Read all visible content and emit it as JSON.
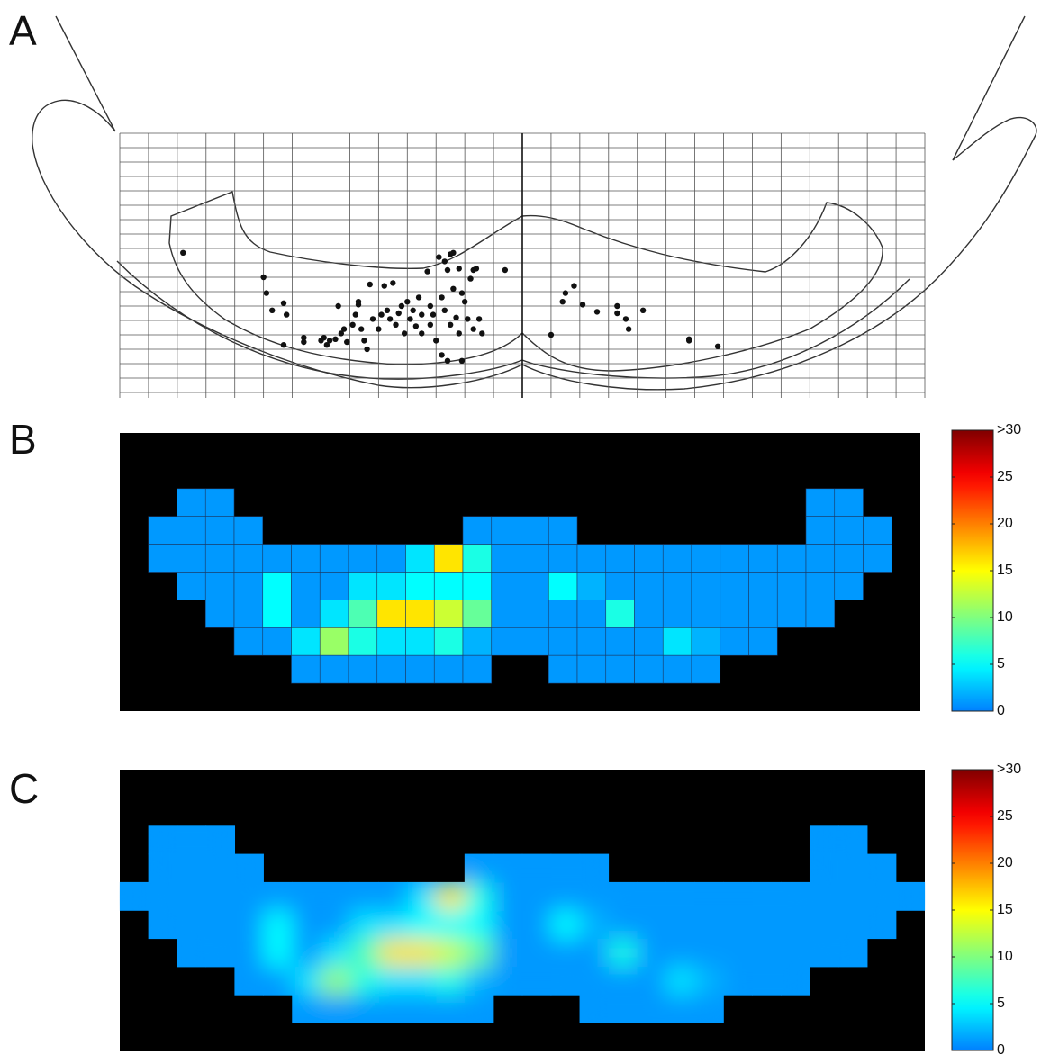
{
  "chart_data": [
    {
      "type": "scatter",
      "panel_label": "A",
      "color": "#111111",
      "xlim": [
        0,
        28
      ],
      "ylim": [
        18,
        0
      ],
      "grid": true,
      "x": [
        2.2,
        5.0,
        5.1,
        5.3,
        5.7,
        5.8,
        5.7,
        6.4,
        6.4,
        7.0,
        7.1,
        7.2,
        7.3,
        7.5,
        7.6,
        7.7,
        7.8,
        7.9,
        8.1,
        8.2,
        8.3,
        8.3,
        8.4,
        8.5,
        8.6,
        8.7,
        8.8,
        9.0,
        9.1,
        9.2,
        9.3,
        9.4,
        9.5,
        9.6,
        9.7,
        9.8,
        9.9,
        10.0,
        10.1,
        10.2,
        10.3,
        10.4,
        10.5,
        10.5,
        10.7,
        10.8,
        10.8,
        10.9,
        11.0,
        11.1,
        11.2,
        11.2,
        11.3,
        11.3,
        11.4,
        11.5,
        11.5,
        11.6,
        11.6,
        11.7,
        11.8,
        11.8,
        11.9,
        11.9,
        12.0,
        12.1,
        12.2,
        12.3,
        12.3,
        12.5,
        12.6,
        12.4,
        11.4,
        13.4,
        15.0,
        15.4,
        15.5,
        15.8,
        16.1,
        16.6,
        17.3,
        17.3,
        17.6,
        17.7,
        18.2,
        19.8,
        19.8,
        20.8
      ],
      "y": [
        8.3,
        10.0,
        11.1,
        12.3,
        11.8,
        12.6,
        14.7,
        14.2,
        14.5,
        14.4,
        14.2,
        14.7,
        14.4,
        14.3,
        12.0,
        13.9,
        13.6,
        14.5,
        13.3,
        12.6,
        11.9,
        11.7,
        13.6,
        14.4,
        15.0,
        10.5,
        12.9,
        13.6,
        12.6,
        10.6,
        12.3,
        12.9,
        10.4,
        13.3,
        12.5,
        12.0,
        13.9,
        11.7,
        12.9,
        12.3,
        13.4,
        11.4,
        12.6,
        13.9,
        9.6,
        12.0,
        13.3,
        12.6,
        14.4,
        8.6,
        15.4,
        11.4,
        12.3,
        8.9,
        9.5,
        8.4,
        13.3,
        8.3,
        10.8,
        12.8,
        13.9,
        9.4,
        15.8,
        11.1,
        11.7,
        12.9,
        10.1,
        9.5,
        13.6,
        12.9,
        13.9,
        9.4,
        15.8,
        9.5,
        14.0,
        11.7,
        11.1,
        10.6,
        11.9,
        12.4,
        12.0,
        12.5,
        12.9,
        13.6,
        12.3,
        14.4,
        14.3,
        14.8
      ]
    },
    {
      "type": "heatmap",
      "panel_label": "B",
      "colormap": "jet",
      "smooth": false,
      "values": [
        [
          null,
          null,
          null,
          null,
          null,
          null,
          null,
          null,
          null,
          null,
          null,
          null,
          null,
          null,
          null,
          null,
          null,
          null,
          null,
          null,
          null,
          null,
          null,
          null,
          null,
          null,
          null,
          null
        ],
        [
          null,
          null,
          null,
          null,
          null,
          null,
          null,
          null,
          null,
          null,
          null,
          null,
          null,
          null,
          null,
          null,
          null,
          null,
          null,
          null,
          null,
          null,
          null,
          null,
          null,
          null,
          null,
          null
        ],
        [
          null,
          null,
          1,
          1,
          null,
          null,
          null,
          null,
          null,
          null,
          null,
          null,
          null,
          null,
          null,
          null,
          null,
          null,
          null,
          null,
          null,
          null,
          null,
          null,
          1,
          1,
          null,
          null
        ],
        [
          null,
          1,
          1,
          1,
          1,
          null,
          null,
          null,
          null,
          null,
          null,
          null,
          1,
          1,
          1,
          1,
          null,
          null,
          null,
          null,
          null,
          null,
          null,
          null,
          1,
          1,
          1,
          null
        ],
        [
          null,
          1,
          1,
          1,
          1,
          1,
          1,
          1,
          1,
          1,
          4,
          16,
          6,
          1,
          1,
          1,
          1,
          1,
          1,
          1,
          1,
          1,
          1,
          1,
          1,
          1,
          1,
          null
        ],
        [
          null,
          null,
          1,
          1,
          1,
          5,
          1,
          1,
          4,
          4,
          5,
          5,
          5,
          1,
          1,
          5,
          2,
          1,
          1,
          1,
          1,
          1,
          1,
          1,
          1,
          1,
          null,
          null
        ],
        [
          null,
          null,
          null,
          1,
          1,
          5,
          1,
          4,
          8,
          16,
          16,
          13,
          9,
          1,
          1,
          1,
          1,
          6,
          1,
          1,
          1,
          1,
          1,
          1,
          1,
          null,
          null,
          null
        ],
        [
          null,
          null,
          null,
          null,
          1,
          1,
          4,
          11,
          6,
          4,
          4,
          6,
          2,
          1,
          1,
          1,
          1,
          1,
          1,
          4,
          2,
          1,
          1,
          null,
          null,
          null,
          null,
          null
        ],
        [
          null,
          null,
          null,
          null,
          null,
          null,
          1,
          1,
          1,
          1,
          1,
          1,
          1,
          null,
          null,
          1,
          1,
          1,
          1,
          1,
          1,
          null,
          null,
          null,
          null,
          null,
          null,
          null
        ],
        [
          null,
          null,
          null,
          null,
          null,
          null,
          null,
          null,
          null,
          null,
          null,
          null,
          null,
          null,
          null,
          null,
          null,
          null,
          null,
          null,
          null,
          null,
          null,
          null,
          null,
          null,
          null,
          null
        ]
      ],
      "colorbar": {
        "ylim": [
          0,
          30
        ],
        "yticks": [
          0,
          5,
          10,
          15,
          20,
          25,
          {
            "value": 30,
            "label": ">30"
          }
        ]
      }
    },
    {
      "type": "heatmap",
      "panel_label": "C",
      "colormap": "jet",
      "smooth": true,
      "values": [
        [
          null,
          null,
          null,
          null,
          null,
          null,
          null,
          null,
          null,
          null,
          null,
          null,
          null,
          null,
          null,
          null,
          null,
          null,
          null,
          null,
          null,
          null,
          null,
          null,
          null,
          null,
          null,
          null
        ],
        [
          null,
          null,
          null,
          null,
          null,
          null,
          null,
          null,
          null,
          null,
          null,
          null,
          null,
          null,
          null,
          null,
          null,
          null,
          null,
          null,
          null,
          null,
          null,
          null,
          null,
          null,
          null,
          null
        ],
        [
          null,
          1,
          1,
          1,
          null,
          null,
          null,
          null,
          null,
          null,
          null,
          null,
          null,
          null,
          null,
          null,
          null,
          null,
          null,
          null,
          null,
          null,
          null,
          null,
          1,
          1,
          null,
          null
        ],
        [
          null,
          1,
          1,
          1,
          1,
          null,
          null,
          null,
          null,
          null,
          null,
          null,
          1,
          1,
          1,
          1,
          1,
          null,
          null,
          null,
          null,
          null,
          null,
          null,
          1,
          1,
          1,
          null
        ],
        [
          1,
          1,
          1,
          1,
          1,
          1,
          1,
          1,
          1,
          1,
          4,
          16,
          6,
          1,
          1,
          1,
          1,
          1,
          1,
          1,
          1,
          1,
          1,
          1,
          1,
          1,
          1,
          1
        ],
        [
          null,
          1,
          1,
          1,
          1,
          5,
          1,
          1,
          4,
          4,
          5,
          5,
          5,
          1,
          1,
          5,
          2,
          1,
          1,
          1,
          1,
          1,
          1,
          1,
          1,
          1,
          1,
          null
        ],
        [
          null,
          null,
          1,
          1,
          1,
          5,
          1,
          4,
          8,
          16,
          16,
          13,
          9,
          1,
          1,
          1,
          1,
          6,
          1,
          1,
          1,
          1,
          1,
          1,
          1,
          1,
          null,
          null
        ],
        [
          null,
          null,
          null,
          null,
          1,
          1,
          4,
          11,
          6,
          4,
          4,
          6,
          2,
          1,
          1,
          1,
          1,
          1,
          1,
          4,
          2,
          1,
          1,
          1,
          null,
          null,
          null,
          null
        ],
        [
          null,
          null,
          null,
          null,
          null,
          null,
          1,
          1,
          1,
          1,
          1,
          1,
          1,
          null,
          null,
          null,
          1,
          1,
          1,
          1,
          1,
          null,
          null,
          null,
          null,
          null,
          null,
          null
        ],
        [
          null,
          null,
          null,
          null,
          null,
          null,
          null,
          null,
          null,
          null,
          null,
          null,
          null,
          null,
          null,
          null,
          null,
          null,
          null,
          null,
          null,
          null,
          null,
          null,
          null,
          null,
          null,
          null
        ]
      ],
      "colorbar": {
        "ylim": [
          0,
          30
        ],
        "yticks": [
          0,
          5,
          10,
          15,
          20,
          25,
          {
            "value": 30,
            "label": ">30"
          }
        ]
      }
    }
  ]
}
